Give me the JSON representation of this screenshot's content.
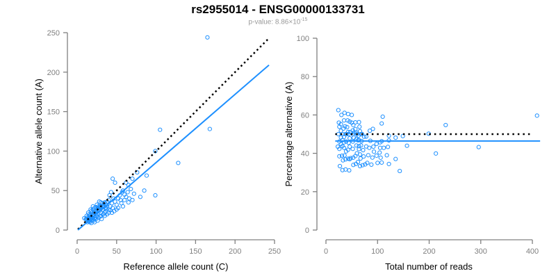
{
  "chart_data": [
    {
      "type": "scatter",
      "title": "rs2955014 - ENSG00000133731",
      "subtitle_prefix": "p-value: 8.86×10",
      "subtitle_exponent": "-15",
      "xlabel": "Reference allele count (C)",
      "ylabel": "Alternative allele count (A)",
      "xlim": [
        0,
        250
      ],
      "ylim": [
        0,
        250
      ],
      "xticks": [
        "0",
        "50",
        "100",
        "150",
        "200",
        "250"
      ],
      "yticks": [
        "0",
        "50",
        "100",
        "150",
        "200",
        "250"
      ],
      "reference_line": {
        "style": "dotted",
        "color": "#000000",
        "slope": 1.0,
        "intercept": 0
      },
      "fit_line": {
        "style": "solid",
        "color": "#1E90FF",
        "slope": 0.86,
        "intercept": 0
      },
      "point_color": "#1E90FF",
      "points": [
        [
          12,
          12
        ],
        [
          14,
          15
        ],
        [
          15,
          11
        ],
        [
          16,
          18
        ],
        [
          13,
          16
        ],
        [
          18,
          14
        ],
        [
          17,
          20
        ],
        [
          20,
          15
        ],
        [
          19,
          22
        ],
        [
          21,
          18
        ],
        [
          22,
          14
        ],
        [
          15,
          20
        ],
        [
          16,
          13
        ],
        [
          18,
          24
        ],
        [
          20,
          26
        ],
        [
          22,
          28
        ],
        [
          24,
          22
        ],
        [
          25,
          18
        ],
        [
          23,
          16
        ],
        [
          26,
          20
        ],
        [
          27,
          30
        ],
        [
          28,
          24
        ],
        [
          30,
          22
        ],
        [
          29,
          17
        ],
        [
          31,
          28
        ],
        [
          32,
          34
        ],
        [
          33,
          26
        ],
        [
          34,
          30
        ],
        [
          35,
          22
        ],
        [
          36,
          28
        ],
        [
          37,
          32
        ],
        [
          38,
          36
        ],
        [
          30,
          35
        ],
        [
          28,
          36
        ],
        [
          25,
          32
        ],
        [
          24,
          29
        ],
        [
          20,
          30
        ],
        [
          17,
          26
        ],
        [
          14,
          22
        ],
        [
          12,
          18
        ],
        [
          11,
          14
        ],
        [
          13,
          10
        ],
        [
          16,
          10
        ],
        [
          19,
          12
        ],
        [
          21,
          12
        ],
        [
          24,
          14
        ],
        [
          27,
          16
        ],
        [
          30,
          18
        ],
        [
          33,
          20
        ],
        [
          36,
          24
        ],
        [
          40,
          26
        ],
        [
          42,
          30
        ],
        [
          44,
          34
        ],
        [
          45,
          28
        ],
        [
          40,
          38
        ],
        [
          41,
          44
        ],
        [
          43,
          48
        ],
        [
          46,
          40
        ],
        [
          48,
          36
        ],
        [
          50,
          32
        ],
        [
          52,
          40
        ],
        [
          54,
          44
        ],
        [
          55,
          38
        ],
        [
          57,
          48
        ],
        [
          58,
          50
        ],
        [
          60,
          45
        ],
        [
          62,
          42
        ],
        [
          64,
          48
        ],
        [
          66,
          40
        ],
        [
          68,
          52
        ],
        [
          65,
          35
        ],
        [
          58,
          30
        ],
        [
          52,
          28
        ],
        [
          47,
          24
        ],
        [
          40,
          22
        ],
        [
          35,
          18
        ],
        [
          31,
          14
        ],
        [
          26,
          12
        ],
        [
          22,
          10
        ],
        [
          18,
          9
        ],
        [
          38,
          30
        ],
        [
          34,
          34
        ],
        [
          30,
          30
        ],
        [
          26,
          26
        ],
        [
          22,
          22
        ],
        [
          19,
          19
        ],
        [
          45,
          65
        ],
        [
          48,
          60
        ],
        [
          62,
          60
        ],
        [
          65,
          57
        ],
        [
          70,
          65
        ],
        [
          76,
          73
        ],
        [
          85,
          50
        ],
        [
          88,
          69
        ],
        [
          99,
          44
        ],
        [
          99,
          100
        ],
        [
          105,
          127
        ],
        [
          128,
          85
        ],
        [
          165,
          244
        ],
        [
          168,
          128
        ],
        [
          15,
          14
        ],
        [
          17,
          15
        ],
        [
          18,
          17
        ],
        [
          20,
          20
        ],
        [
          23,
          24
        ],
        [
          25,
          27
        ],
        [
          27,
          28
        ],
        [
          29,
          30
        ],
        [
          32,
          31
        ],
        [
          35,
          35
        ],
        [
          14,
          12
        ],
        [
          16,
          16
        ],
        [
          19,
          16
        ],
        [
          21,
          22
        ],
        [
          12,
          14
        ],
        [
          24,
          20
        ],
        [
          28,
          26
        ],
        [
          33,
          29
        ],
        [
          37,
          27
        ],
        [
          42,
          25
        ],
        [
          44,
          22
        ],
        [
          38,
          20
        ],
        [
          50,
          26
        ],
        [
          56,
          34
        ],
        [
          60,
          38
        ],
        [
          72,
          46
        ],
        [
          80,
          42
        ],
        [
          70,
          38
        ],
        [
          9,
          15
        ]
      ]
    },
    {
      "type": "scatter",
      "xlabel": "Total number of reads",
      "ylabel": "Percentage alternative (A)",
      "xlim": [
        0,
        400
      ],
      "ylim": [
        0,
        100
      ],
      "xticks": [
        "0",
        "100",
        "200",
        "300",
        "400"
      ],
      "yticks": [
        "0",
        "20",
        "40",
        "60",
        "80",
        "100"
      ],
      "derived_from": "total = C + A, percentage = 100 * A / (C + A), using points of chart 1",
      "reference_line": {
        "style": "dotted",
        "color": "#000000",
        "y": 50
      },
      "fit_line": {
        "style": "solid",
        "color": "#1E90FF",
        "y": 46.4
      },
      "point_color": "#1E90FF"
    }
  ]
}
